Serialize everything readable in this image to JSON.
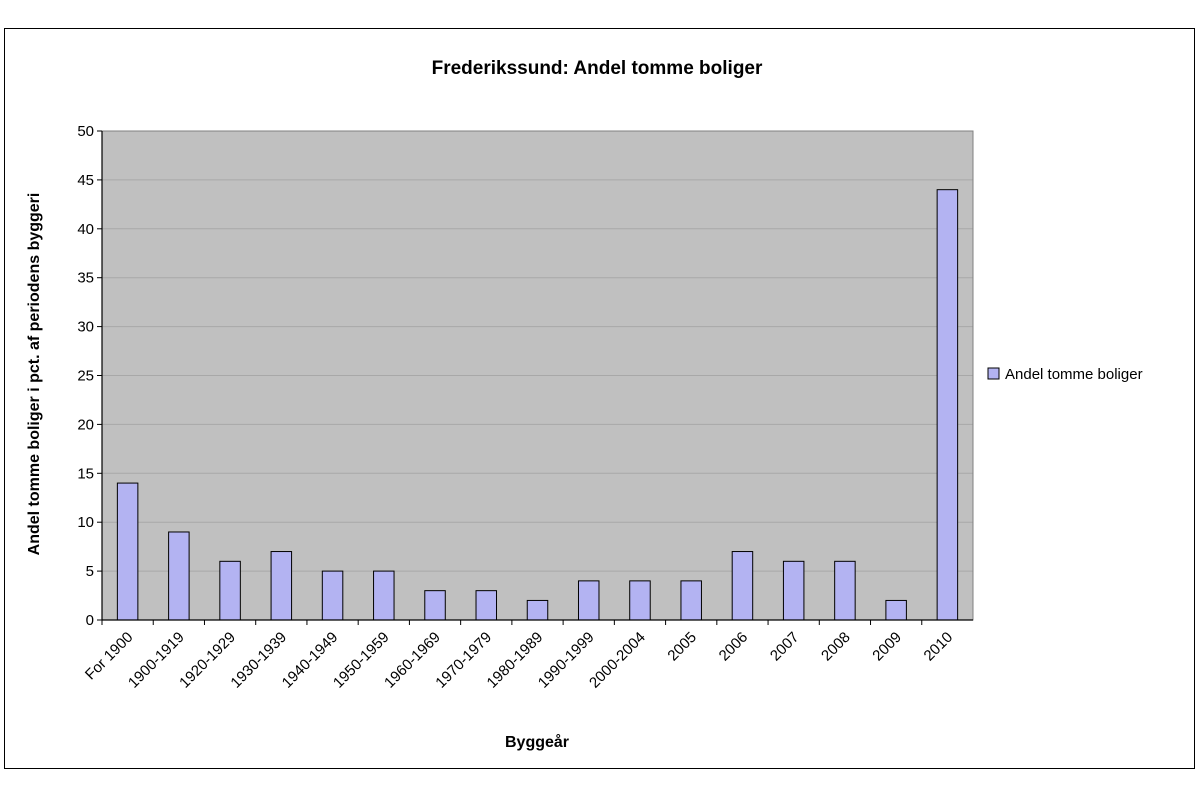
{
  "chart_data": {
    "type": "bar",
    "title": "Frederikssund: Andel tomme boliger",
    "xlabel": "Byggeår",
    "ylabel": "Andel tomme boliger i pct. af periodens byggeri",
    "categories": [
      "For 1900",
      "1900-1919",
      "1920-1929",
      "1930-1939",
      "1940-1949",
      "1950-1959",
      "1960-1969",
      "1970-1979",
      "1980-1989",
      "1990-1999",
      "2000-2004",
      "2005",
      "2006",
      "2007",
      "2008",
      "2009",
      "2010"
    ],
    "series": [
      {
        "name": "Andel tomme boliger",
        "values": [
          14,
          9,
          6,
          7,
          5,
          5,
          3,
          3,
          2,
          4,
          4,
          4,
          7,
          6,
          6,
          2,
          44
        ]
      }
    ],
    "ylim": [
      0,
      50
    ],
    "yticks": [
      "0",
      "5",
      "10",
      "15",
      "20",
      "25",
      "30",
      "35",
      "40",
      "45",
      "50"
    ],
    "grid": true,
    "legend_position": "right",
    "colors": {
      "bar_fill": "#b3b3f2",
      "bar_stroke": "#000000",
      "plot_background": "#c0c0c0",
      "gridline": "#a8a8a8"
    }
  }
}
